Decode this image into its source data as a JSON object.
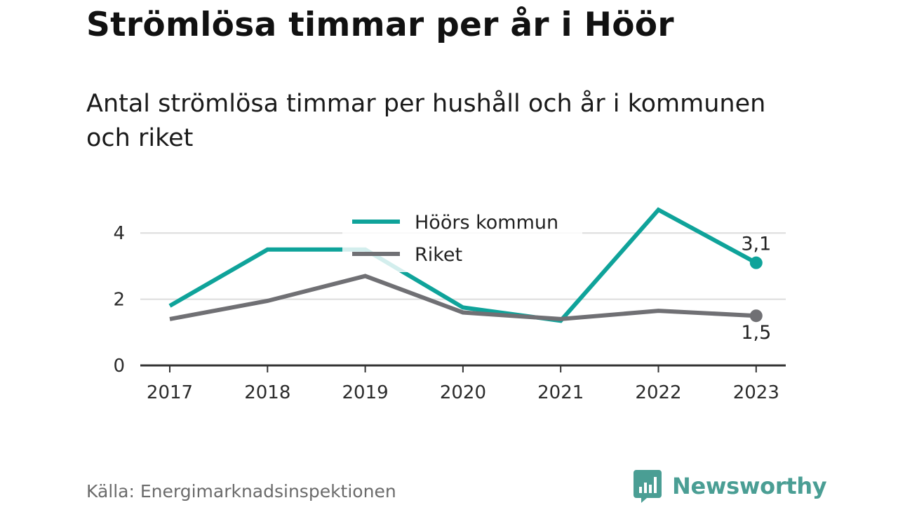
{
  "title": "Strömlösa timmar per år i Höör",
  "subtitle": "Antal strömlösa timmar per hushåll och år i kommunen och riket",
  "source": "Källa: Energimarknadsinspektionen",
  "brand": {
    "name": "Newsworthy",
    "color": "#4a9e94",
    "icon": "newsworthy-logo-icon"
  },
  "chart_data": {
    "type": "line",
    "categories": [
      "2017",
      "2018",
      "2019",
      "2020",
      "2021",
      "2022",
      "2023"
    ],
    "yticks": [
      "0",
      "2",
      "4"
    ],
    "ylim": [
      0,
      5
    ],
    "grid": true,
    "legend_position": "top-center",
    "series": [
      {
        "name": "Höörs kommun",
        "color": "#0fa39a",
        "values": [
          1.8,
          3.5,
          3.5,
          1.75,
          1.35,
          4.7,
          3.1
        ],
        "end_label": "3,1"
      },
      {
        "name": "Riket",
        "color": "#707074",
        "values": [
          1.4,
          1.95,
          2.7,
          1.6,
          1.4,
          1.65,
          1.5
        ],
        "end_label": "1,5"
      }
    ]
  }
}
